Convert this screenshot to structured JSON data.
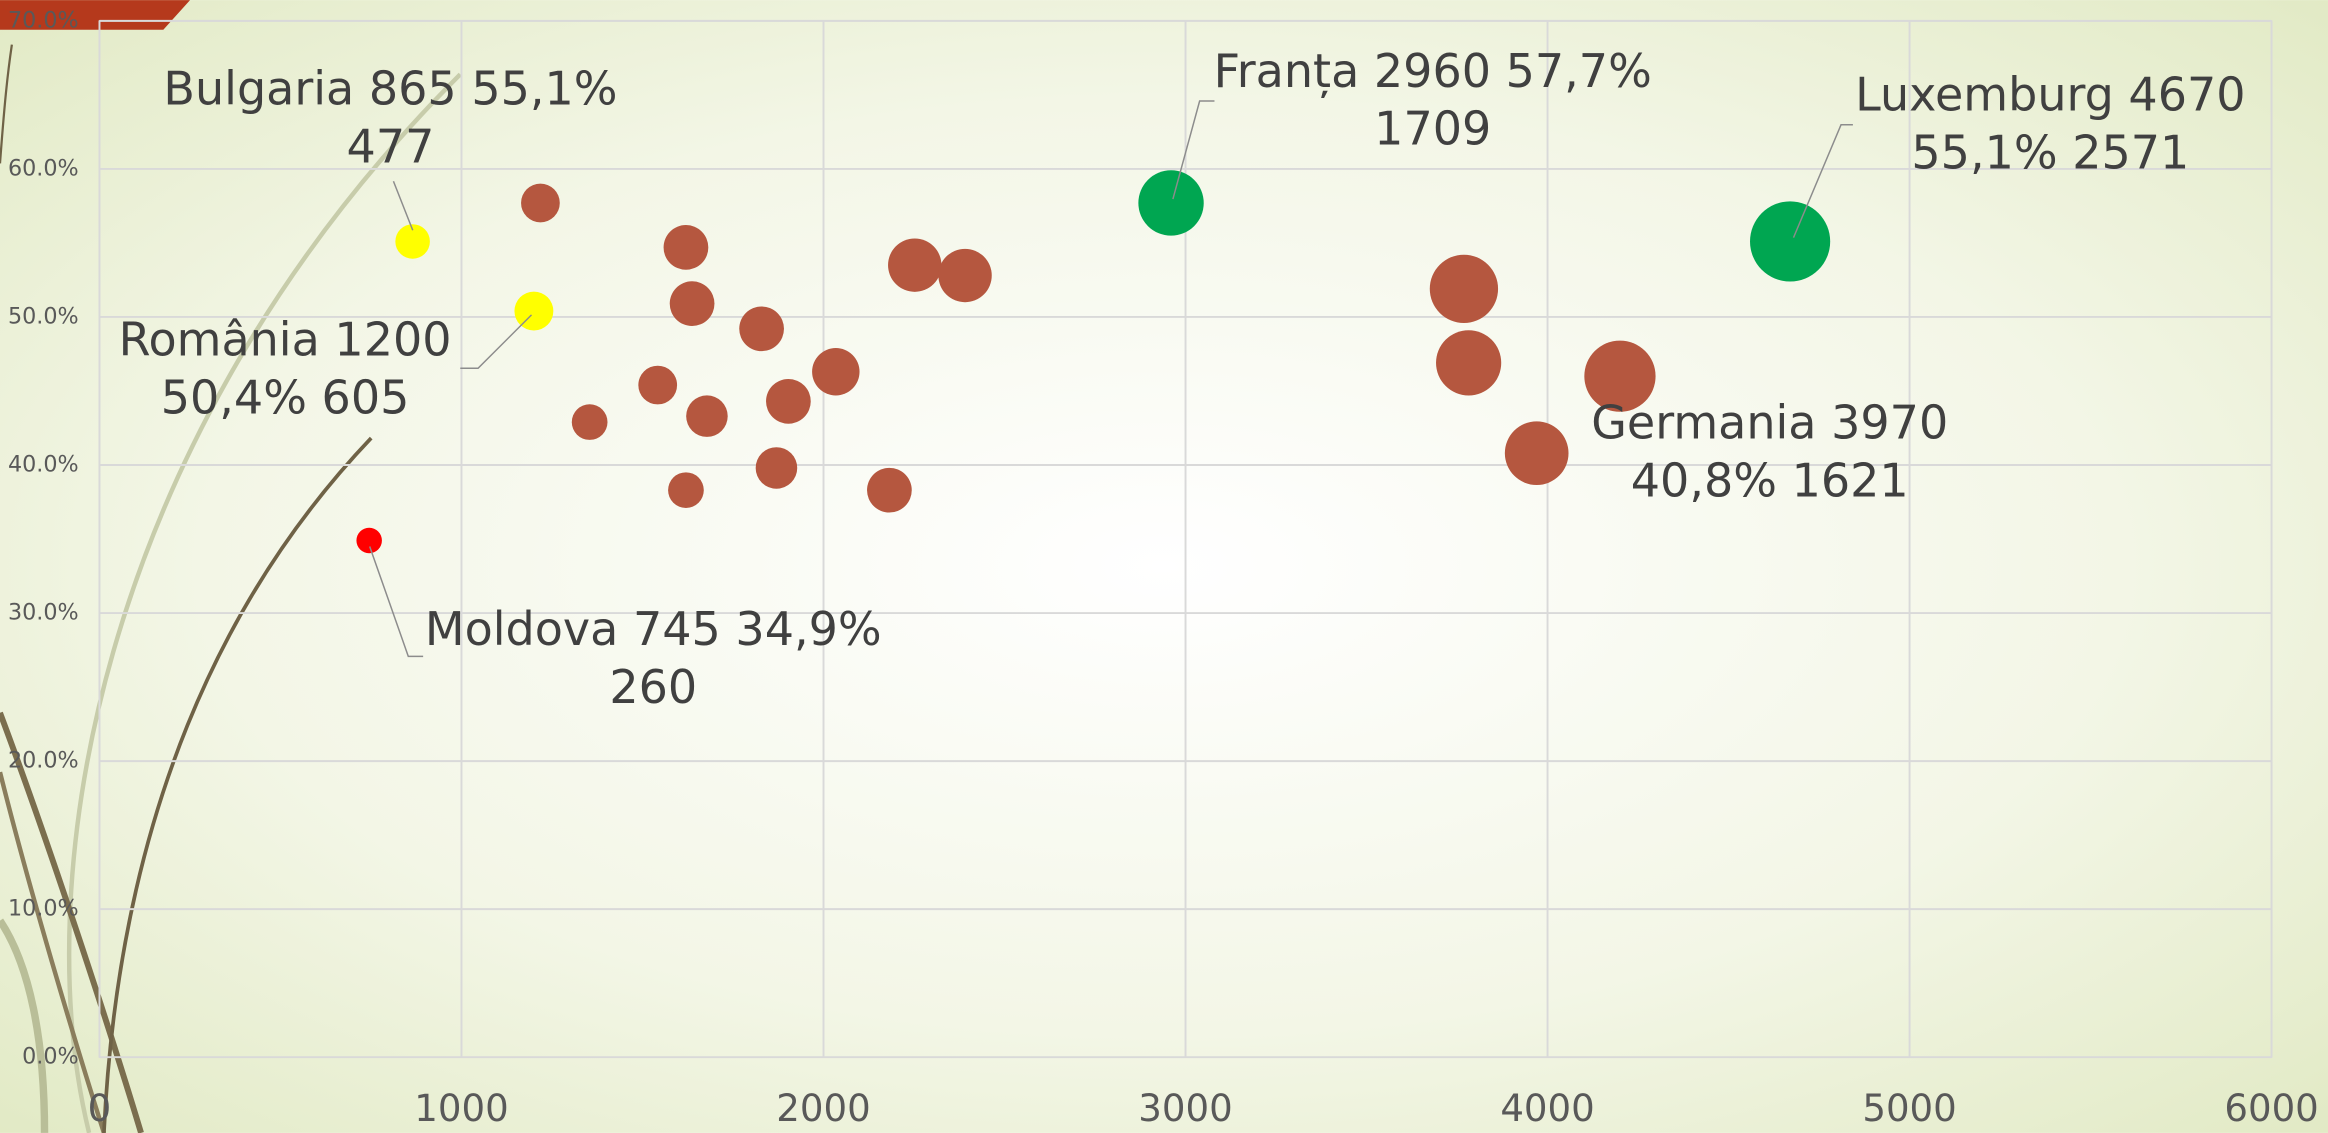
{
  "chart_data": {
    "type": "bubble",
    "x": [
      865,
      1200,
      745,
      2960,
      4670,
      3970,
      1218,
      1620,
      1637,
      1829,
      1542,
      1678,
      1903,
      2034,
      1354,
      1620,
      1870,
      2182,
      2252,
      2391,
      3769,
      3782,
      4200
    ],
    "values": [
      55.1,
      50.4,
      34.9,
      57.7,
      55.1,
      40.8,
      57.7,
      54.7,
      50.9,
      49.2,
      45.4,
      43.3,
      44.3,
      46.3,
      42.9,
      38.3,
      39.8,
      38.3,
      53.5,
      52.8,
      51.9,
      46.9,
      46.0
    ],
    "sizes": [
      477,
      605,
      260,
      1709,
      2571,
      1621,
      600,
      800,
      800,
      800,
      600,
      690,
      800,
      900,
      510,
      510,
      690,
      800,
      1140,
      1140,
      1865,
      1700,
      2030
    ],
    "colors": [
      "#ffff00",
      "#ffff00",
      "#ff0000",
      "#00a651",
      "#00a651",
      "#b5573f",
      "#b5573f",
      "#b5573f",
      "#b5573f",
      "#b5573f",
      "#b5573f",
      "#b5573f",
      "#b5573f",
      "#b5573f",
      "#b5573f",
      "#b5573f",
      "#b5573f",
      "#b5573f",
      "#b5573f",
      "#b5573f",
      "#b5573f",
      "#b5573f",
      "#b5573f"
    ],
    "point_labels": [
      [
        "Bulgaria 865 55,1%",
        "477"
      ],
      [
        "România 1200",
        "50,4% 605"
      ],
      [
        "Moldova 745 34,9%",
        "260"
      ],
      [
        "Franța 2960 57,7%",
        "1709"
      ],
      [
        "Luxemburg 4670",
        "55,1% 2571"
      ],
      [
        "Germania 3970",
        "40,8% 1621"
      ],
      null,
      null,
      null,
      null,
      null,
      null,
      null,
      null,
      null,
      null,
      null,
      null,
      null,
      null,
      null,
      null,
      null
    ],
    "xlim": [
      0,
      6000
    ],
    "xticks": [
      0,
      1000,
      2000,
      3000,
      4000,
      5000,
      6000
    ],
    "ylim": [
      0,
      70
    ],
    "yticks": [
      {
        "value": 0,
        "label": "0.0%"
      },
      {
        "value": 10,
        "label": "10.0%"
      },
      {
        "value": 20,
        "label": "20.0%"
      },
      {
        "value": 30,
        "label": "30.0%"
      },
      {
        "value": 40,
        "label": "40.0%"
      },
      {
        "value": 50,
        "label": "50.0%"
      },
      {
        "value": 60,
        "label": "60.0%"
      },
      {
        "value": 70,
        "label": "70.0%"
      }
    ],
    "grid": true
  }
}
